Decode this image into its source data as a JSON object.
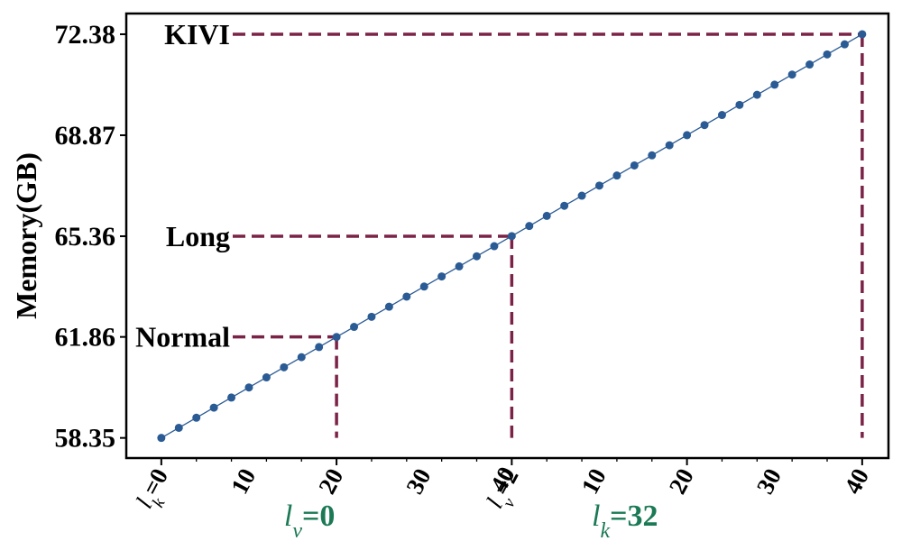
{
  "chart_data": {
    "type": "line",
    "ylabel": "Memory(GB)",
    "yticks": [
      "58.35",
      "61.86",
      "65.36",
      "68.87",
      "72.38"
    ],
    "ylim": [
      57.65,
      73.1
    ],
    "xlim": [
      -2,
      41.5
    ],
    "xtick_labels": [
      "l_k=0",
      "10",
      "20",
      "30",
      "l_v=2",
      "10",
      "20",
      "30",
      "40"
    ],
    "xtick_overlay": {
      "index": 4,
      "text": "40"
    },
    "group_labels": [
      {
        "base": "l",
        "sub": "v",
        "rest": "=0",
        "at_index": 10
      },
      {
        "base": "l",
        "sub": "k",
        "rest": "=32",
        "at_index": 28
      }
    ],
    "series": [
      {
        "color": "#2b5b94",
        "y_start": 58.35,
        "y_end": 72.38,
        "count": 41
      }
    ],
    "annotations": [
      {
        "text": "Normal",
        "index": 10,
        "y": 61.86
      },
      {
        "text": "Long",
        "index": 20,
        "y": 65.36
      },
      {
        "text": "KIVI",
        "index": 40,
        "y": 72.38
      }
    ],
    "colors": {
      "series": "#2b5b94",
      "annotation_line": "#7b2346",
      "group_label": "#1b7a55",
      "text": "#000000"
    }
  }
}
